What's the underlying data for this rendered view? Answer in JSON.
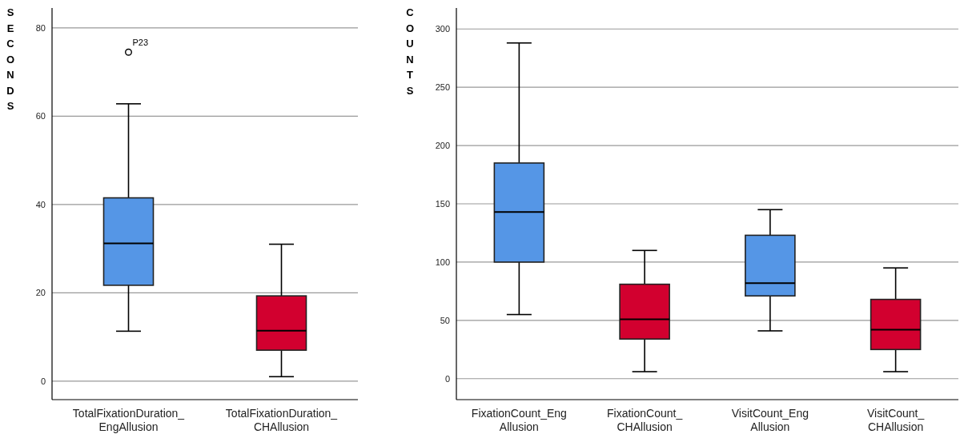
{
  "chart_data": [
    {
      "type": "box",
      "ylabel": "SECONDS",
      "categories": [
        "TotalFixationDuration_EngAllusion",
        "TotalFixationDuration_CHAllusion"
      ],
      "boxes": [
        {
          "low": 11.3,
          "q1": 21.7,
          "median": 31.2,
          "q3": 41.5,
          "high": 62.8,
          "outliers": [
            74.5
          ]
        },
        {
          "low": 1,
          "q1": 7,
          "median": 11.4,
          "q3": 19.3,
          "high": 31
        }
      ],
      "colors": [
        "#5596e6",
        "#d2002f"
      ],
      "ylim": [
        -4.2,
        84.5
      ],
      "yticks": [
        0,
        20,
        40,
        60,
        80
      ],
      "grid": "y",
      "annotations": [
        "P23"
      ]
    },
    {
      "type": "box",
      "ylabel": "COUNTS",
      "categories": [
        "FixationCount_EngAllusion",
        "FixationCount_CHAllusion",
        "VisitCount_EngAllusion",
        "VisitCount_CHAllusion"
      ],
      "boxes": [
        {
          "low": 55,
          "q1": 100,
          "median": 143,
          "q3": 185,
          "high": 288
        },
        {
          "low": 6,
          "q1": 34,
          "median": 51,
          "q3": 81,
          "high": 110
        },
        {
          "low": 41,
          "q1": 71,
          "median": 82,
          "q3": 123,
          "high": 145
        },
        {
          "low": 6,
          "q1": 25,
          "median": 42,
          "q3": 68,
          "high": 95
        }
      ],
      "colors": [
        "#5596e6",
        "#d2002f",
        "#5596e6",
        "#d2002f"
      ],
      "ylim": [
        -18,
        318
      ],
      "yticks": [
        0,
        50,
        100,
        150,
        200,
        250,
        300
      ],
      "grid": "y"
    }
  ]
}
